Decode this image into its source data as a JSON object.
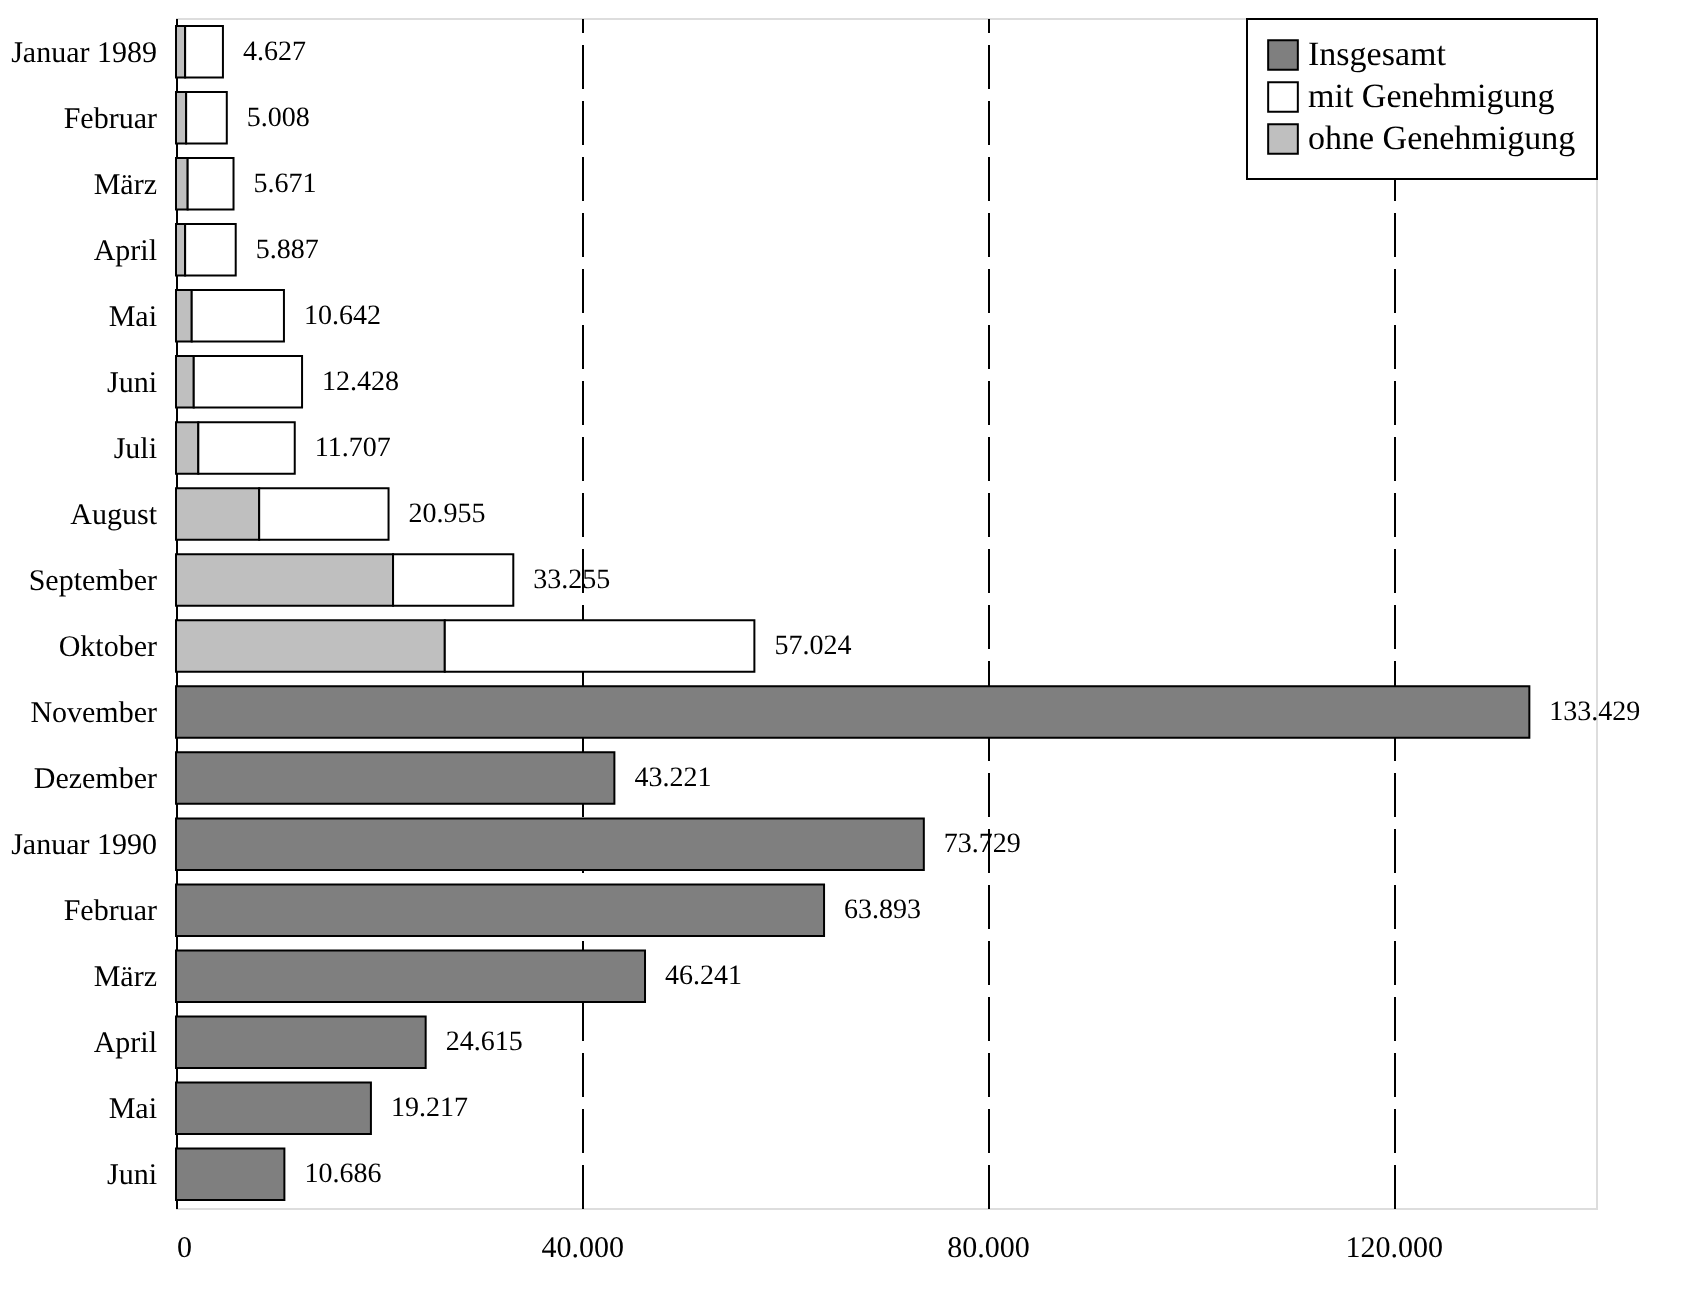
{
  "chart_data": {
    "type": "bar",
    "orientation": "horizontal",
    "stacked": true,
    "categories": [
      "Januar 1989",
      "Februar",
      "März",
      "April",
      "Mai",
      "Juni",
      "Juli",
      "August",
      "September",
      "Oktober",
      "November",
      "Dezember",
      "Januar 1990",
      "Februar",
      "März",
      "April",
      "Mai",
      "Juni"
    ],
    "series": [
      {
        "name": "ohne Genehmigung",
        "color": "#bfbfbf",
        "values": [
          900,
          1000,
          1150,
          900,
          1550,
          1750,
          2200,
          8200,
          21400,
          26500,
          null,
          null,
          null,
          null,
          null,
          null,
          null,
          null
        ]
      },
      {
        "name": "mit Genehmigung",
        "color": "#ffffff",
        "values": [
          3727,
          4008,
          4521,
          4987,
          9092,
          10678,
          9507,
          12755,
          11855,
          30524,
          null,
          null,
          null,
          null,
          null,
          null,
          null,
          null
        ]
      },
      {
        "name": "Insgesamt",
        "color": "#7f7f7f",
        "values": [
          null,
          null,
          null,
          null,
          null,
          null,
          null,
          null,
          null,
          null,
          133429,
          43221,
          73729,
          63893,
          46241,
          24615,
          19217,
          10686
        ]
      }
    ],
    "totals": [
      "4.627",
      "5.008",
      "5.671",
      "5.887",
      "10.642",
      "12.428",
      "11.707",
      "20.955",
      "33.255",
      "57.024",
      "133.429",
      "43.221",
      "73.729",
      "63.893",
      "46.241",
      "24.615",
      "19.217",
      "10.686"
    ],
    "xlim": [
      0,
      140000
    ],
    "xticks": [
      {
        "value": 0,
        "label": "0"
      },
      {
        "value": 40000,
        "label": "40.000"
      },
      {
        "value": 80000,
        "label": "80.000"
      },
      {
        "value": 120000,
        "label": "120.000"
      }
    ],
    "grid": "x",
    "legend": "top right"
  }
}
